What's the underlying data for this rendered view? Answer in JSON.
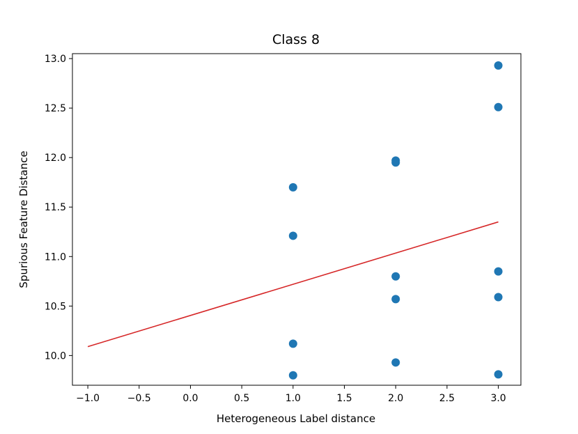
{
  "chart_data": {
    "type": "scatter",
    "title": "Class 8",
    "xlabel": "Heterogeneous Label distance",
    "ylabel": "Spurious Feature Distance",
    "xlim": [
      -1.15,
      3.22
    ],
    "ylim": [
      9.7,
      13.05
    ],
    "xticks": [
      -1.0,
      -0.5,
      0.0,
      0.5,
      1.0,
      1.5,
      2.0,
      2.5,
      3.0
    ],
    "xtick_labels": [
      "−1.0",
      "−0.5",
      "0.0",
      "0.5",
      "1.0",
      "1.5",
      "2.0",
      "2.5",
      "3.0"
    ],
    "yticks": [
      10.0,
      10.5,
      11.0,
      11.5,
      12.0,
      12.5,
      13.0
    ],
    "ytick_labels": [
      "10.0",
      "10.5",
      "11.0",
      "11.5",
      "12.0",
      "12.5",
      "13.0"
    ],
    "grid": false,
    "series": [
      {
        "type": "scatter",
        "color": "#1f77b4",
        "points": [
          {
            "x": 1.0,
            "y": 11.7
          },
          {
            "x": 1.0,
            "y": 11.21
          },
          {
            "x": 1.0,
            "y": 10.12
          },
          {
            "x": 1.0,
            "y": 9.8
          },
          {
            "x": 2.0,
            "y": 11.97
          },
          {
            "x": 2.0,
            "y": 11.95
          },
          {
            "x": 2.0,
            "y": 10.8
          },
          {
            "x": 2.0,
            "y": 10.57
          },
          {
            "x": 2.0,
            "y": 9.93
          },
          {
            "x": 3.0,
            "y": 12.93
          },
          {
            "x": 3.0,
            "y": 12.51
          },
          {
            "x": 3.0,
            "y": 10.85
          },
          {
            "x": 3.0,
            "y": 10.59
          },
          {
            "x": 3.0,
            "y": 9.81
          }
        ]
      },
      {
        "type": "line",
        "color": "#d62728",
        "points": [
          {
            "x": -1.0,
            "y": 10.09
          },
          {
            "x": 3.0,
            "y": 11.35
          }
        ]
      }
    ]
  }
}
